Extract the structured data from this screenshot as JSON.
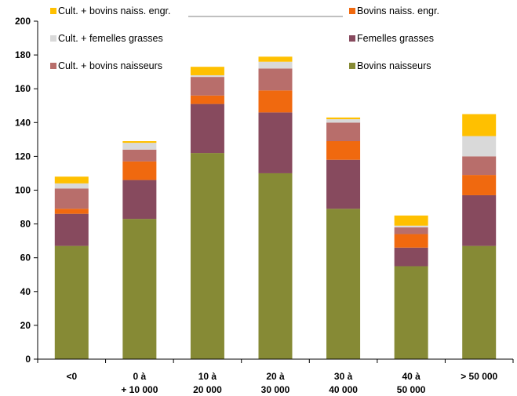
{
  "chart_data": {
    "type": "bar",
    "stacked": true,
    "categories": [
      [
        "<0"
      ],
      [
        "0 à",
        "+ 10 000"
      ],
      [
        "10 à",
        "20 000"
      ],
      [
        "20 à",
        "30 000"
      ],
      [
        "30 à",
        "40 000"
      ],
      [
        "40 à",
        "50 000"
      ],
      [
        "> 50 000"
      ]
    ],
    "series": [
      {
        "name": "Bovins naisseurs",
        "color": "#868a35",
        "values": [
          67,
          83,
          122,
          110,
          89,
          55,
          67
        ]
      },
      {
        "name": "Femelles grasses",
        "color": "#874a5e",
        "values": [
          19,
          23,
          29,
          36,
          29,
          11,
          30
        ]
      },
      {
        "name": "Bovins naiss. engr.",
        "color": "#f0690f",
        "values": [
          3,
          11,
          5,
          13,
          11,
          8,
          12
        ]
      },
      {
        "name": "Cult. + bovins naisseurs",
        "color": "#b86e6b",
        "values": [
          12,
          7,
          11,
          13,
          11,
          4,
          11
        ]
      },
      {
        "name": "Cult. + femelles grasses",
        "color": "#d9d9d9",
        "values": [
          3,
          4,
          1,
          4,
          2,
          1,
          12
        ]
      },
      {
        "name": "Cult. + bovins naiss. engr.",
        "color": "#ffc000",
        "values": [
          4,
          1,
          5,
          3,
          1,
          6,
          13
        ]
      }
    ],
    "ylim": [
      0,
      200
    ],
    "yticks": [
      0,
      20,
      40,
      60,
      80,
      100,
      120,
      140,
      160,
      180,
      200
    ],
    "grid": false,
    "legend": {
      "placement": "top",
      "layout": [
        [
          {
            "series": "Cult. + bovins naiss. engr."
          },
          {
            "series": "Cult. + femelles grasses"
          },
          {
            "series": "Cult. + bovins naisseurs"
          }
        ],
        [
          {
            "series": "Bovins naiss. engr."
          },
          {
            "series": "Femelles grasses"
          },
          {
            "series": "Bovins naisseurs"
          }
        ]
      ]
    }
  }
}
